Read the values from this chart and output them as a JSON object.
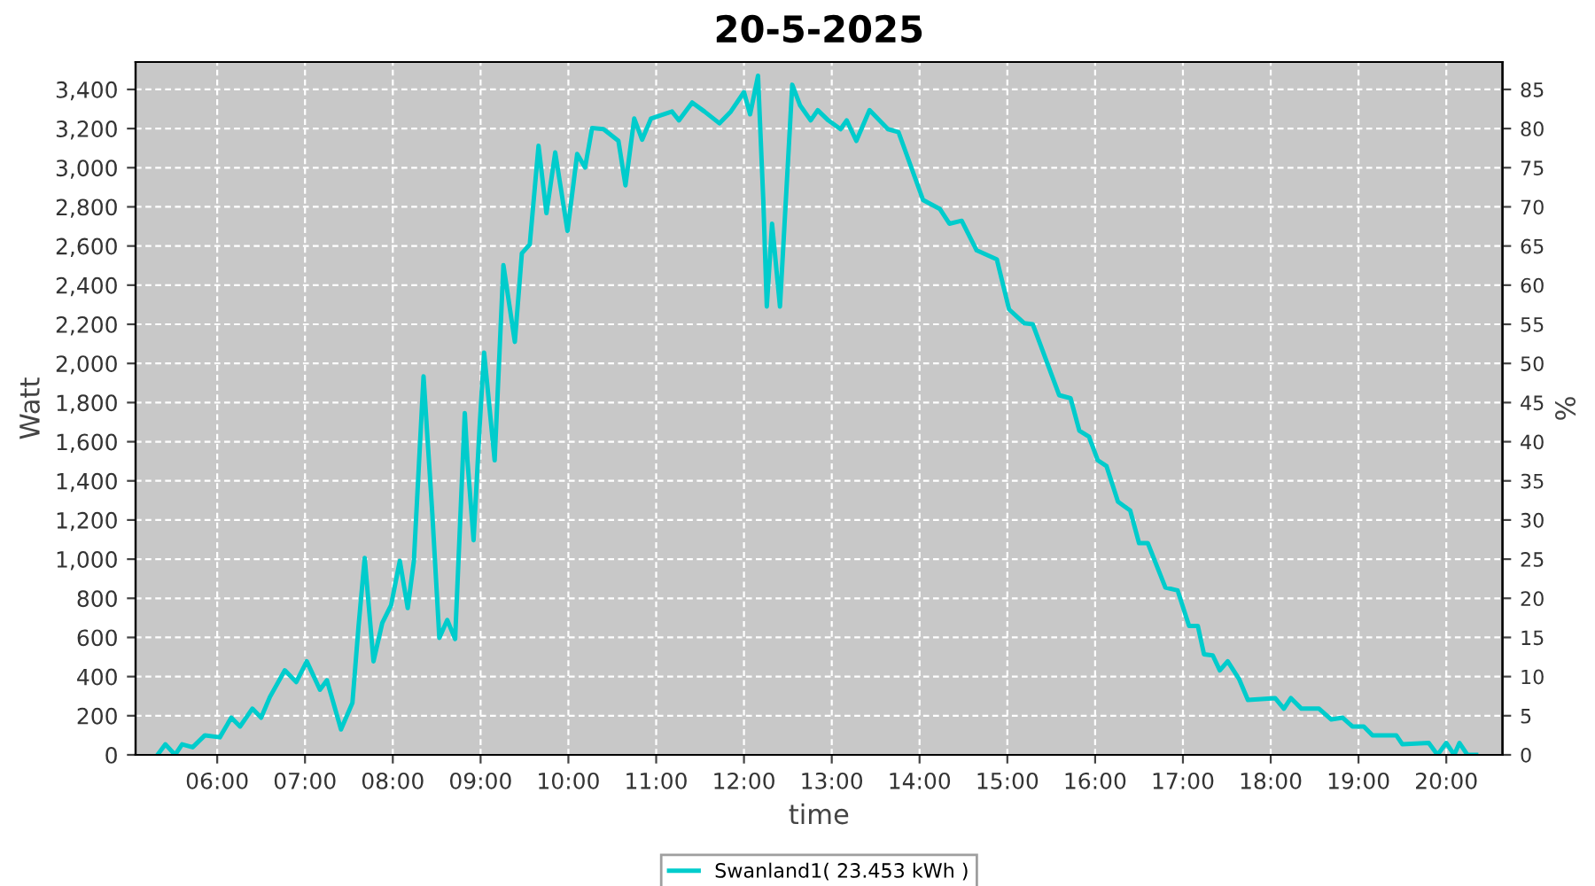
{
  "chart_data": {
    "type": "line",
    "title": "20-5-2025",
    "xlabel": "time",
    "ylabel": "Watt",
    "y2label": "%",
    "xlim": [
      5.07,
      20.64
    ],
    "xticks": [
      {
        "value": 6,
        "label": "06:00"
      },
      {
        "value": 7,
        "label": "07:00"
      },
      {
        "value": 8,
        "label": "08:00"
      },
      {
        "value": 9,
        "label": "09:00"
      },
      {
        "value": 10,
        "label": "10:00"
      },
      {
        "value": 11,
        "label": "11:00"
      },
      {
        "value": 12,
        "label": "12:00"
      },
      {
        "value": 13,
        "label": "13:00"
      },
      {
        "value": 14,
        "label": "14:00"
      },
      {
        "value": 15,
        "label": "15:00"
      },
      {
        "value": 16,
        "label": "16:00"
      },
      {
        "value": 17,
        "label": "17:00"
      },
      {
        "value": 18,
        "label": "18:00"
      },
      {
        "value": 19,
        "label": "19:00"
      },
      {
        "value": 20,
        "label": "20:00"
      }
    ],
    "ylim": [
      0,
      3540
    ],
    "yticks": [
      {
        "value": 0,
        "label": "0"
      },
      {
        "value": 200,
        "label": "200"
      },
      {
        "value": 400,
        "label": "400"
      },
      {
        "value": 600,
        "label": "600"
      },
      {
        "value": 800,
        "label": "800"
      },
      {
        "value": 1000,
        "label": "1,000"
      },
      {
        "value": 1200,
        "label": "1,200"
      },
      {
        "value": 1400,
        "label": "1,400"
      },
      {
        "value": 1600,
        "label": "1,600"
      },
      {
        "value": 1800,
        "label": "1,800"
      },
      {
        "value": 2000,
        "label": "2,000"
      },
      {
        "value": 2200,
        "label": "2,200"
      },
      {
        "value": 2400,
        "label": "2,400"
      },
      {
        "value": 2600,
        "label": "2,600"
      },
      {
        "value": 2800,
        "label": "2,800"
      },
      {
        "value": 3000,
        "label": "3,000"
      },
      {
        "value": 3200,
        "label": "3,200"
      },
      {
        "value": 3400,
        "label": "3,400"
      }
    ],
    "y2lim": [
      0,
      88.5
    ],
    "y2ticks": [
      0,
      5,
      10,
      15,
      20,
      25,
      30,
      35,
      40,
      45,
      50,
      55,
      60,
      65,
      70,
      75,
      80,
      85
    ],
    "grid": true,
    "legend": "bottom",
    "marker": "none",
    "line_style": "solid",
    "series": [
      {
        "name": "Swanland1( 23.453 kWh )",
        "color": "#00cccc",
        "x": [
          5.32,
          5.41,
          5.52,
          5.6,
          5.72,
          5.86,
          6.03,
          6.16,
          6.26,
          6.4,
          6.5,
          6.6,
          6.77,
          6.9,
          7.02,
          7.17,
          7.25,
          7.41,
          7.54,
          7.61,
          7.68,
          7.78,
          7.88,
          7.98,
          8.08,
          8.17,
          8.24,
          8.35,
          8.45,
          8.53,
          8.62,
          8.71,
          8.82,
          8.85,
          8.92,
          8.99,
          9.04,
          9.16,
          9.26,
          9.39,
          9.47,
          9.56,
          9.66,
          9.75,
          9.85,
          9.99,
          10.1,
          10.19,
          10.27,
          10.4,
          10.57,
          10.65,
          10.75,
          10.84,
          10.94,
          11.18,
          11.26,
          11.41,
          11.55,
          11.72,
          11.85,
          12.0,
          12.07,
          12.16,
          12.22,
          12.26,
          12.32,
          12.41,
          12.55,
          12.64,
          12.76,
          12.84,
          12.96,
          13.1,
          13.17,
          13.28,
          13.43,
          13.64,
          13.76,
          14.04,
          14.23,
          14.34,
          14.48,
          14.65,
          14.88,
          15.02,
          15.19,
          15.29,
          15.39,
          15.59,
          15.72,
          15.82,
          15.93,
          16.03,
          16.13,
          16.26,
          16.4,
          16.5,
          16.6,
          16.8,
          16.94,
          17.07,
          17.17,
          17.24,
          17.34,
          17.42,
          17.51,
          17.64,
          17.74,
          18.05,
          18.15,
          18.23,
          18.35,
          18.55,
          18.69,
          18.82,
          18.93,
          19.06,
          19.16,
          19.43,
          19.5,
          19.8,
          19.9,
          20.0,
          20.09,
          20.15,
          20.24,
          20.34
        ],
        "values": [
          0,
          54,
          0,
          54,
          39,
          100,
          90,
          190,
          145,
          236,
          190,
          296,
          432,
          372,
          478,
          333,
          381,
          130,
          266,
          659,
          1006,
          478,
          674,
          764,
          991,
          750,
          991,
          1934,
          1233,
          598,
          689,
          592,
          1746,
          1505,
          1097,
          1686,
          2055,
          1505,
          2502,
          2110,
          2563,
          2608,
          3112,
          2768,
          3078,
          2677,
          3070,
          3001,
          3203,
          3197,
          3137,
          2910,
          3251,
          3143,
          3251,
          3287,
          3242,
          3333,
          3287,
          3227,
          3287,
          3386,
          3273,
          3470,
          2835,
          2291,
          2714,
          2291,
          3424,
          3318,
          3242,
          3294,
          3242,
          3197,
          3242,
          3137,
          3294,
          3197,
          3182,
          2835,
          2790,
          2714,
          2729,
          2578,
          2532,
          2276,
          2206,
          2200,
          2079,
          1838,
          1822,
          1656,
          1626,
          1505,
          1475,
          1294,
          1248,
          1082,
          1082,
          855,
          840,
          659,
          659,
          514,
          508,
          432,
          478,
          387,
          281,
          290,
          236,
          290,
          236,
          236,
          181,
          190,
          145,
          145,
          100,
          100,
          54,
          61,
          0,
          61,
          0,
          61,
          0,
          0
        ]
      }
    ]
  }
}
